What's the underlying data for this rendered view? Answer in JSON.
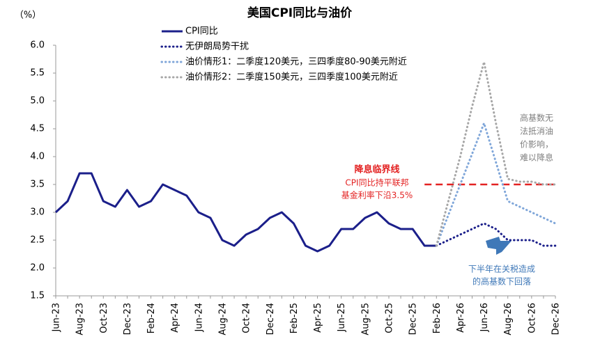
{
  "chart_data": {
    "type": "line",
    "title": "美国CPI同比与油价",
    "y_unit": "（%）",
    "categories": [
      "Jun-23",
      null,
      "Aug-23",
      null,
      "Oct-23",
      null,
      "Dec-23",
      null,
      "Feb-24",
      null,
      "Apr-24",
      null,
      "Jun-24",
      null,
      "Aug-24",
      null,
      "Oct-24",
      null,
      "Dec-24",
      null,
      "Feb-25",
      null,
      "Apr-25",
      null,
      "Jun-25",
      null,
      "Aug-25",
      null,
      "Oct-25",
      null,
      "Dec-25",
      null,
      "Feb-26",
      null,
      "Apr-26",
      null,
      "Jun-26",
      null,
      "Aug-26",
      null,
      "Oct-26",
      null,
      "Dec-26"
    ],
    "series": [
      {
        "name": "CPI同比",
        "color": "#1b1f8a",
        "style": "solid",
        "values": [
          3.0,
          3.2,
          3.7,
          3.7,
          3.2,
          3.1,
          3.4,
          3.1,
          3.2,
          3.5,
          3.4,
          3.3,
          3.0,
          2.9,
          2.5,
          2.4,
          2.6,
          2.7,
          2.9,
          3.0,
          2.8,
          2.4,
          2.3,
          2.4,
          2.7,
          2.7,
          2.9,
          3.0,
          2.8,
          2.7,
          2.7,
          2.4,
          2.4,
          null,
          null,
          null,
          null,
          null,
          null,
          null,
          null,
          null,
          null
        ]
      },
      {
        "name": "无伊朗局势干扰",
        "color": "#1b1f8a",
        "style": "dotted",
        "values": [
          null,
          null,
          null,
          null,
          null,
          null,
          null,
          null,
          null,
          null,
          null,
          null,
          null,
          null,
          null,
          null,
          null,
          null,
          null,
          null,
          null,
          null,
          null,
          null,
          null,
          null,
          null,
          null,
          null,
          null,
          null,
          null,
          2.4,
          2.5,
          2.6,
          2.7,
          2.8,
          2.7,
          2.5,
          2.5,
          2.5,
          2.4,
          2.4
        ]
      },
      {
        "name": "油价情形1：二季度120美元，三四季度80-90美元附近",
        "color": "#7fa6d9",
        "style": "dotted",
        "values": [
          null,
          null,
          null,
          null,
          null,
          null,
          null,
          null,
          null,
          null,
          null,
          null,
          null,
          null,
          null,
          null,
          null,
          null,
          null,
          null,
          null,
          null,
          null,
          null,
          null,
          null,
          null,
          null,
          null,
          null,
          null,
          null,
          2.4,
          2.95,
          3.5,
          4.05,
          4.6,
          3.9,
          3.2,
          3.1,
          3.0,
          2.9,
          2.8
        ]
      },
      {
        "name": "油价情形2：二季度150美元，三四季度100美元附近",
        "color": "#a6a6a6",
        "style": "dotted",
        "values": [
          null,
          null,
          null,
          null,
          null,
          null,
          null,
          null,
          null,
          null,
          null,
          null,
          null,
          null,
          null,
          null,
          null,
          null,
          null,
          null,
          null,
          null,
          null,
          null,
          null,
          null,
          null,
          null,
          null,
          null,
          null,
          null,
          2.4,
          3.2,
          4.0,
          4.9,
          5.7,
          4.6,
          3.6,
          3.55,
          3.55,
          3.5,
          3.5
        ]
      }
    ],
    "ylim": [
      1.5,
      6.0
    ],
    "yticks": [
      {
        "value": 1.5,
        "label": "1.5"
      },
      {
        "value": 2,
        "label": "2.0"
      },
      {
        "value": 2.5,
        "label": "2.5"
      },
      {
        "value": 3,
        "label": "3.0"
      },
      {
        "value": 3.5,
        "label": "3.5"
      },
      {
        "value": 4,
        "label": "4.0"
      },
      {
        "value": 4.5,
        "label": "4.5"
      },
      {
        "value": 5,
        "label": "5.0"
      },
      {
        "value": 5.5,
        "label": "5.5"
      },
      {
        "value": 6,
        "label": "6.0"
      }
    ],
    "reference_line": {
      "value": 3.5,
      "color": "#e32222",
      "label": "降息临界线",
      "note": [
        "CPI同比持平联邦",
        "基金利率下沿3.5%"
      ]
    },
    "annotations": [
      {
        "lines": [
          "高基数无",
          "法抵消油",
          "价影响，",
          "难以降息"
        ],
        "color": "#7f7f7f"
      },
      {
        "lines": [
          "下半年在关税造成",
          "的高基数下回落"
        ],
        "color": "#3f78b8"
      }
    ],
    "legend": "top-left"
  }
}
